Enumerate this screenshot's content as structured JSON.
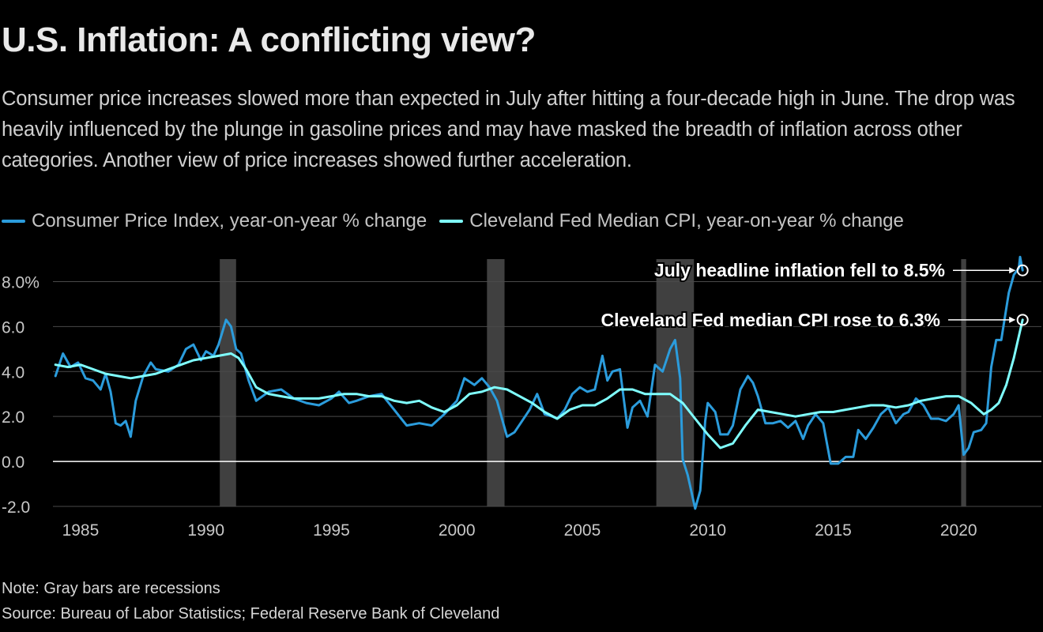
{
  "title": "U.S. Inflation: A conflicting view?",
  "subtitle": "Consumer price increases slowed more than expected in July after hitting a four-decade high in June. The drop was heavily influenced by the plunge in gasoline prices and may have masked the breadth of inflation across other categories. Another view of price increases showed further acceleration.",
  "note": "Note: Gray bars are recessions",
  "source": "Source: Bureau of Labor Statistics; Federal Reserve Bank of Cleveland",
  "colors": {
    "background": "#000000",
    "cpi": "#2b9cdc",
    "median_cpi": "#7fffff",
    "recession": "#404040",
    "grid": "#4a4a4a",
    "text": "#ffffff"
  },
  "chart_data": {
    "type": "line",
    "xlabel": "",
    "ylabel": "",
    "xlim": [
      1983.9,
      2023.3
    ],
    "ylim": [
      -2,
      9
    ],
    "x_ticks": [
      1985,
      1990,
      1995,
      2000,
      2005,
      2010,
      2015,
      2020
    ],
    "y_ticks": [
      -2,
      0,
      2,
      4,
      6,
      8
    ],
    "y_tick_labels": [
      "-2.0",
      "0.0",
      "2.0",
      "4.0",
      "6.0",
      "8.0%"
    ],
    "grid": "horizontal",
    "legend_position": "top-left",
    "recessions": [
      [
        1990.55,
        1991.2
      ],
      [
        2001.2,
        2001.9
      ],
      [
        2007.95,
        2009.45
      ],
      [
        2020.1,
        2020.3
      ]
    ],
    "series": [
      {
        "name": "Consumer Price Index, year-on-year % change",
        "color": "#2b9cdc",
        "points": [
          [
            1984.0,
            3.8
          ],
          [
            1984.3,
            4.8
          ],
          [
            1984.6,
            4.2
          ],
          [
            1984.9,
            4.4
          ],
          [
            1985.2,
            3.7
          ],
          [
            1985.5,
            3.6
          ],
          [
            1985.8,
            3.2
          ],
          [
            1986.0,
            3.9
          ],
          [
            1986.2,
            3.1
          ],
          [
            1986.4,
            1.7
          ],
          [
            1986.6,
            1.6
          ],
          [
            1986.8,
            1.8
          ],
          [
            1987.0,
            1.1
          ],
          [
            1987.2,
            2.7
          ],
          [
            1987.5,
            3.8
          ],
          [
            1987.8,
            4.4
          ],
          [
            1988.0,
            4.1
          ],
          [
            1988.5,
            4.0
          ],
          [
            1988.9,
            4.3
          ],
          [
            1989.2,
            5.0
          ],
          [
            1989.5,
            5.2
          ],
          [
            1989.8,
            4.5
          ],
          [
            1990.0,
            4.9
          ],
          [
            1990.3,
            4.7
          ],
          [
            1990.5,
            5.2
          ],
          [
            1990.8,
            6.3
          ],
          [
            1991.0,
            6.0
          ],
          [
            1991.2,
            5.0
          ],
          [
            1991.4,
            4.8
          ],
          [
            1991.7,
            3.6
          ],
          [
            1992.0,
            2.7
          ],
          [
            1992.5,
            3.1
          ],
          [
            1993.0,
            3.2
          ],
          [
            1993.5,
            2.8
          ],
          [
            1994.0,
            2.6
          ],
          [
            1994.5,
            2.5
          ],
          [
            1995.0,
            2.8
          ],
          [
            1995.3,
            3.1
          ],
          [
            1995.7,
            2.6
          ],
          [
            1996.0,
            2.7
          ],
          [
            1996.5,
            2.9
          ],
          [
            1997.0,
            3.0
          ],
          [
            1997.5,
            2.3
          ],
          [
            1998.0,
            1.6
          ],
          [
            1998.5,
            1.7
          ],
          [
            1999.0,
            1.6
          ],
          [
            1999.5,
            2.1
          ],
          [
            2000.0,
            2.7
          ],
          [
            2000.3,
            3.7
          ],
          [
            2000.7,
            3.4
          ],
          [
            2001.0,
            3.7
          ],
          [
            2001.3,
            3.3
          ],
          [
            2001.6,
            2.7
          ],
          [
            2001.8,
            1.9
          ],
          [
            2002.0,
            1.1
          ],
          [
            2002.3,
            1.3
          ],
          [
            2002.6,
            1.8
          ],
          [
            2002.9,
            2.3
          ],
          [
            2003.2,
            3.0
          ],
          [
            2003.5,
            2.1
          ],
          [
            2003.8,
            2.0
          ],
          [
            2004.0,
            1.9
          ],
          [
            2004.3,
            2.3
          ],
          [
            2004.6,
            3.0
          ],
          [
            2004.9,
            3.3
          ],
          [
            2005.2,
            3.1
          ],
          [
            2005.5,
            3.2
          ],
          [
            2005.8,
            4.7
          ],
          [
            2006.0,
            3.6
          ],
          [
            2006.2,
            4.0
          ],
          [
            2006.5,
            4.1
          ],
          [
            2006.8,
            1.5
          ],
          [
            2007.0,
            2.4
          ],
          [
            2007.3,
            2.7
          ],
          [
            2007.6,
            2.0
          ],
          [
            2007.9,
            4.3
          ],
          [
            2008.2,
            4.0
          ],
          [
            2008.5,
            5.0
          ],
          [
            2008.7,
            5.4
          ],
          [
            2008.9,
            3.7
          ],
          [
            2009.0,
            0.1
          ],
          [
            2009.2,
            -0.6
          ],
          [
            2009.5,
            -2.1
          ],
          [
            2009.7,
            -1.3
          ],
          [
            2009.9,
            1.8
          ],
          [
            2010.0,
            2.6
          ],
          [
            2010.3,
            2.2
          ],
          [
            2010.5,
            1.2
          ],
          [
            2010.8,
            1.2
          ],
          [
            2011.0,
            1.6
          ],
          [
            2011.3,
            3.2
          ],
          [
            2011.6,
            3.8
          ],
          [
            2011.8,
            3.5
          ],
          [
            2012.0,
            2.9
          ],
          [
            2012.3,
            1.7
          ],
          [
            2012.6,
            1.7
          ],
          [
            2012.9,
            1.8
          ],
          [
            2013.2,
            1.5
          ],
          [
            2013.5,
            1.8
          ],
          [
            2013.8,
            1.0
          ],
          [
            2014.0,
            1.6
          ],
          [
            2014.3,
            2.1
          ],
          [
            2014.6,
            1.7
          ],
          [
            2014.9,
            -0.1
          ],
          [
            2015.2,
            -0.1
          ],
          [
            2015.5,
            0.2
          ],
          [
            2015.8,
            0.2
          ],
          [
            2016.0,
            1.4
          ],
          [
            2016.3,
            1.0
          ],
          [
            2016.6,
            1.5
          ],
          [
            2016.9,
            2.1
          ],
          [
            2017.2,
            2.4
          ],
          [
            2017.5,
            1.7
          ],
          [
            2017.8,
            2.1
          ],
          [
            2018.0,
            2.2
          ],
          [
            2018.3,
            2.8
          ],
          [
            2018.6,
            2.5
          ],
          [
            2018.9,
            1.9
          ],
          [
            2019.2,
            1.9
          ],
          [
            2019.5,
            1.8
          ],
          [
            2019.8,
            2.1
          ],
          [
            2020.0,
            2.5
          ],
          [
            2020.2,
            0.3
          ],
          [
            2020.4,
            0.6
          ],
          [
            2020.6,
            1.3
          ],
          [
            2020.9,
            1.4
          ],
          [
            2021.1,
            1.7
          ],
          [
            2021.3,
            4.2
          ],
          [
            2021.5,
            5.4
          ],
          [
            2021.7,
            5.4
          ],
          [
            2021.9,
            6.8
          ],
          [
            2022.0,
            7.5
          ],
          [
            2022.2,
            8.3
          ],
          [
            2022.4,
            8.6
          ],
          [
            2022.45,
            9.1
          ],
          [
            2022.55,
            8.5
          ]
        ]
      },
      {
        "name": "Cleveland Fed Median CPI, year-on-year % change",
        "color": "#7fffff",
        "points": [
          [
            1984.0,
            4.3
          ],
          [
            1984.5,
            4.2
          ],
          [
            1985.0,
            4.3
          ],
          [
            1985.5,
            4.1
          ],
          [
            1986.0,
            3.9
          ],
          [
            1986.5,
            3.8
          ],
          [
            1987.0,
            3.7
          ],
          [
            1987.5,
            3.8
          ],
          [
            1988.0,
            3.9
          ],
          [
            1988.5,
            4.1
          ],
          [
            1989.0,
            4.3
          ],
          [
            1989.5,
            4.5
          ],
          [
            1990.0,
            4.6
          ],
          [
            1990.5,
            4.7
          ],
          [
            1991.0,
            4.8
          ],
          [
            1991.3,
            4.6
          ],
          [
            1991.6,
            4.1
          ],
          [
            1992.0,
            3.3
          ],
          [
            1992.5,
            3.0
          ],
          [
            1993.0,
            2.9
          ],
          [
            1993.5,
            2.8
          ],
          [
            1994.0,
            2.8
          ],
          [
            1994.5,
            2.8
          ],
          [
            1995.0,
            2.9
          ],
          [
            1995.5,
            3.0
          ],
          [
            1996.0,
            3.0
          ],
          [
            1996.5,
            2.9
          ],
          [
            1997.0,
            2.9
          ],
          [
            1997.5,
            2.7
          ],
          [
            1998.0,
            2.6
          ],
          [
            1998.5,
            2.7
          ],
          [
            1999.0,
            2.4
          ],
          [
            1999.5,
            2.2
          ],
          [
            2000.0,
            2.5
          ],
          [
            2000.5,
            3.0
          ],
          [
            2001.0,
            3.1
          ],
          [
            2001.5,
            3.3
          ],
          [
            2002.0,
            3.2
          ],
          [
            2002.5,
            2.9
          ],
          [
            2003.0,
            2.6
          ],
          [
            2003.5,
            2.2
          ],
          [
            2004.0,
            1.9
          ],
          [
            2004.5,
            2.3
          ],
          [
            2005.0,
            2.5
          ],
          [
            2005.5,
            2.5
          ],
          [
            2006.0,
            2.8
          ],
          [
            2006.5,
            3.2
          ],
          [
            2007.0,
            3.2
          ],
          [
            2007.5,
            3.0
          ],
          [
            2008.0,
            3.0
          ],
          [
            2008.5,
            3.0
          ],
          [
            2009.0,
            2.6
          ],
          [
            2009.5,
            1.9
          ],
          [
            2010.0,
            1.2
          ],
          [
            2010.5,
            0.6
          ],
          [
            2011.0,
            0.8
          ],
          [
            2011.5,
            1.6
          ],
          [
            2012.0,
            2.3
          ],
          [
            2012.5,
            2.2
          ],
          [
            2013.0,
            2.1
          ],
          [
            2013.5,
            2.0
          ],
          [
            2014.0,
            2.1
          ],
          [
            2014.5,
            2.2
          ],
          [
            2015.0,
            2.2
          ],
          [
            2015.5,
            2.3
          ],
          [
            2016.0,
            2.4
          ],
          [
            2016.5,
            2.5
          ],
          [
            2017.0,
            2.5
          ],
          [
            2017.5,
            2.4
          ],
          [
            2018.0,
            2.5
          ],
          [
            2018.5,
            2.7
          ],
          [
            2019.0,
            2.8
          ],
          [
            2019.5,
            2.9
          ],
          [
            2020.0,
            2.9
          ],
          [
            2020.5,
            2.6
          ],
          [
            2021.0,
            2.1
          ],
          [
            2021.3,
            2.3
          ],
          [
            2021.6,
            2.6
          ],
          [
            2021.9,
            3.4
          ],
          [
            2022.2,
            4.6
          ],
          [
            2022.55,
            6.3
          ]
        ]
      }
    ],
    "annotations": [
      {
        "text": "July headline inflation fell to 8.5%",
        "x": 2022.55,
        "y": 8.5
      },
      {
        "text": "Cleveland Fed median CPI rose to 6.3%",
        "x": 2022.55,
        "y": 6.3
      }
    ]
  }
}
